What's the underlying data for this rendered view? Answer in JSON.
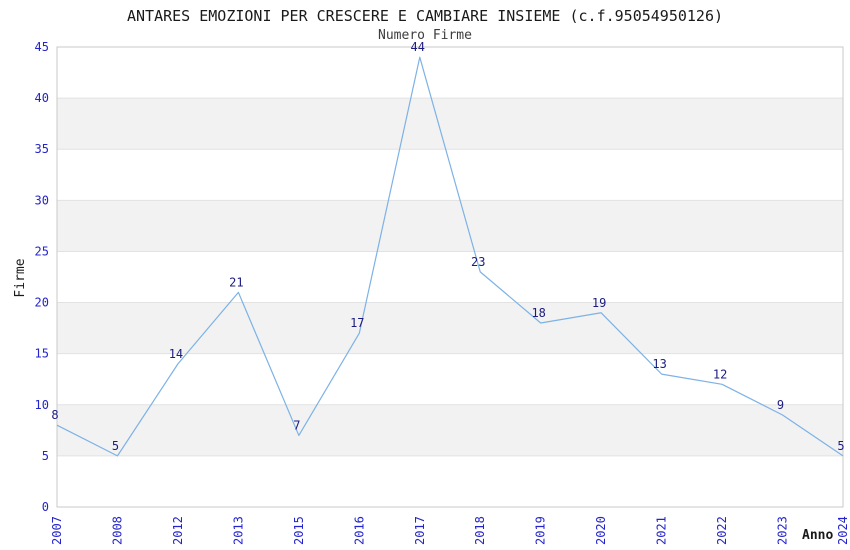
{
  "chart_data": {
    "type": "line",
    "title": "ANTARES EMOZIONI PER CRESCERE E CAMBIARE INSIEME (c.f.95054950126)",
    "subtitle": "Numero Firme",
    "xlabel": "Anno",
    "ylabel": "Firme",
    "categories": [
      "2007",
      "2008",
      "2012",
      "2013",
      "2015",
      "2016",
      "2017",
      "2018",
      "2019",
      "2020",
      "2021",
      "2022",
      "2023",
      "2024"
    ],
    "values": [
      8,
      5,
      14,
      21,
      7,
      17,
      44,
      23,
      18,
      19,
      13,
      12,
      9,
      5
    ],
    "yticks": [
      0,
      5,
      10,
      15,
      20,
      25,
      30,
      35,
      40,
      45
    ],
    "ylim": [
      0,
      45
    ],
    "grid": "alternating-horizontal-bands",
    "legend": "none",
    "show_point_labels": true,
    "colors": {
      "line": "#7db2e6",
      "axis_tick_label": "#2424cc",
      "point_label": "#1c1c80",
      "band_fill": "#f2f2f2",
      "band_alt_fill": "#ffffff",
      "gridline": "#e2e2e2",
      "frame": "#c9c9c9",
      "title_text": "#1a1a1a",
      "subtitle_text": "#3d3d3d",
      "plot_background": "#ffffff"
    }
  }
}
